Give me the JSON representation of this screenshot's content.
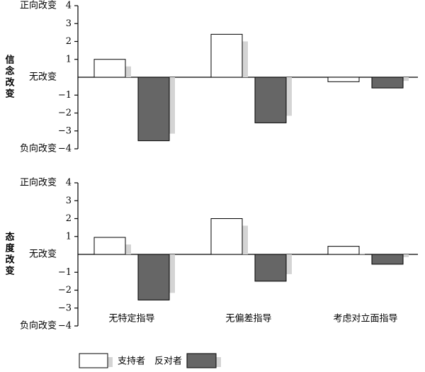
{
  "chart_data": [
    {
      "type": "bar",
      "ylabel": "信念改变",
      "categories": [
        null,
        null,
        null
      ],
      "series": [
        {
          "color": "#ffffff",
          "values": [
            1.0,
            2.4,
            -0.25
          ]
        },
        {
          "color": "#666666",
          "values": [
            -3.55,
            -2.55,
            -0.6
          ]
        }
      ],
      "ylim": [
        -4,
        4
      ],
      "yticks": [
        {
          "value": -4,
          "label": "−4"
        },
        {
          "value": -3,
          "label": "−3"
        },
        {
          "value": -2,
          "label": "−2"
        },
        {
          "value": -1,
          "label": "−1"
        },
        1,
        2,
        3,
        4
      ],
      "level_labels": [
        {
          "value": 4,
          "label": "正向改变"
        },
        {
          "value": 0,
          "label": "无改变"
        },
        {
          "value": -4,
          "label": "负向改变"
        }
      ]
    },
    {
      "type": "bar",
      "ylabel": "态度改变",
      "categories": [
        "无特定指导",
        "无偏差指导",
        "考虑对立面指导"
      ],
      "series": [
        {
          "name": "支持者",
          "color": "#ffffff",
          "values": [
            0.95,
            2.0,
            0.45
          ]
        },
        {
          "name": "反对者",
          "color": "#666666",
          "values": [
            -2.55,
            -1.5,
            -0.55
          ]
        }
      ],
      "ylim": [
        -4,
        4
      ],
      "yticks": [
        {
          "value": -4,
          "label": "−4"
        },
        {
          "value": -3,
          "label": "−3"
        },
        {
          "value": -2,
          "label": "−2"
        },
        {
          "value": -1,
          "label": "−1"
        },
        1,
        2,
        3,
        4
      ],
      "level_labels": [
        {
          "value": 4,
          "label": "正向改变"
        },
        {
          "value": 0,
          "label": "无改变"
        },
        {
          "value": -4,
          "label": "负向改变"
        }
      ]
    }
  ]
}
